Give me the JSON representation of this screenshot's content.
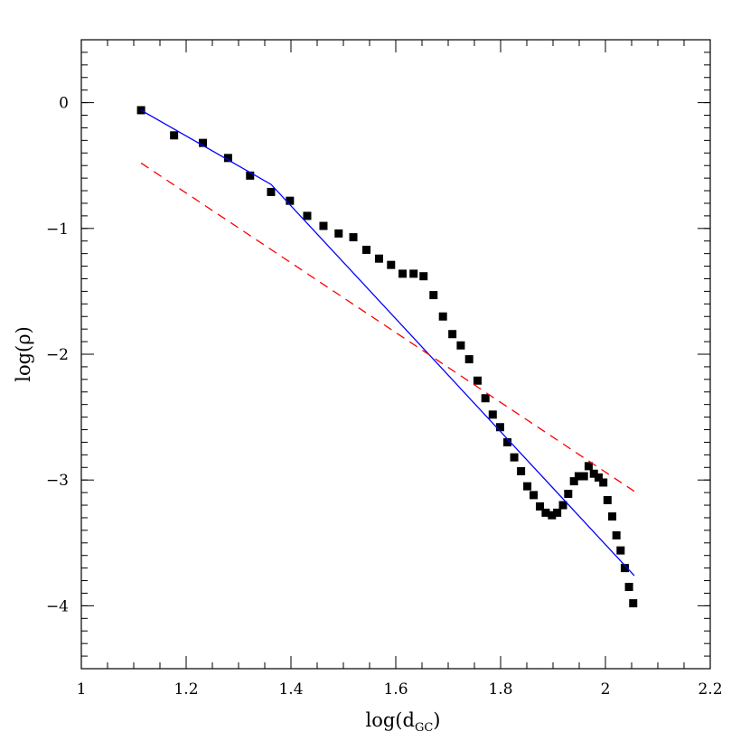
{
  "chart_data": {
    "type": "scatter",
    "xlabel": {
      "base": "log(d",
      "sub": "GC",
      "close": ")"
    },
    "ylabel": "log(ρ)",
    "xlim": [
      1.0,
      2.2
    ],
    "ylim": [
      -4.5,
      0.5
    ],
    "x_ticks": [
      {
        "value": 1.0,
        "label": "1"
      },
      {
        "value": 1.2,
        "label": "1.2"
      },
      {
        "value": 1.4,
        "label": "1.4"
      },
      {
        "value": 1.6,
        "label": "1.6"
      },
      {
        "value": 1.8,
        "label": "1.8"
      },
      {
        "value": 2.0,
        "label": "2"
      },
      {
        "value": 2.2,
        "label": "2.2"
      }
    ],
    "y_ticks": [
      {
        "value": 0,
        "label": "0"
      },
      {
        "value": -1,
        "label": "−1"
      },
      {
        "value": -2,
        "label": "−2"
      },
      {
        "value": -3,
        "label": "−3"
      },
      {
        "value": -4,
        "label": "−4"
      }
    ],
    "x_minor_step": 0.05,
    "y_minor_step": 0.1,
    "series": [
      {
        "kind": "points",
        "color": "#000000",
        "marker": "square",
        "points": [
          [
            1.114,
            -0.06
          ],
          [
            1.177,
            -0.26
          ],
          [
            1.232,
            -0.32
          ],
          [
            1.28,
            -0.44
          ],
          [
            1.322,
            -0.58
          ],
          [
            1.362,
            -0.71
          ],
          [
            1.398,
            -0.78
          ],
          [
            1.431,
            -0.9
          ],
          [
            1.462,
            -0.98
          ],
          [
            1.491,
            -1.04
          ],
          [
            1.519,
            -1.07
          ],
          [
            1.544,
            -1.17
          ],
          [
            1.568,
            -1.24
          ],
          [
            1.591,
            -1.29
          ],
          [
            1.613,
            -1.36
          ],
          [
            1.634,
            -1.36
          ],
          [
            1.653,
            -1.38
          ],
          [
            1.672,
            -1.53
          ],
          [
            1.69,
            -1.7
          ],
          [
            1.708,
            -1.84
          ],
          [
            1.724,
            -1.93
          ],
          [
            1.74,
            -2.04
          ],
          [
            1.756,
            -2.21
          ],
          [
            1.771,
            -2.35
          ],
          [
            1.785,
            -2.48
          ],
          [
            1.799,
            -2.58
          ],
          [
            1.813,
            -2.7
          ],
          [
            1.826,
            -2.82
          ],
          [
            1.839,
            -2.93
          ],
          [
            1.851,
            -3.05
          ],
          [
            1.863,
            -3.12
          ],
          [
            1.875,
            -3.21
          ],
          [
            1.886,
            -3.26
          ],
          [
            1.898,
            -3.28
          ],
          [
            1.908,
            -3.26
          ],
          [
            1.919,
            -3.2
          ],
          [
            1.929,
            -3.11
          ],
          [
            1.94,
            -3.01
          ],
          [
            1.949,
            -2.97
          ],
          [
            1.959,
            -2.97
          ],
          [
            1.968,
            -2.89
          ],
          [
            1.978,
            -2.95
          ],
          [
            1.987,
            -2.98
          ],
          [
            1.996,
            -3.02
          ],
          [
            2.004,
            -3.16
          ],
          [
            2.013,
            -3.29
          ],
          [
            2.021,
            -3.44
          ],
          [
            2.029,
            -3.56
          ],
          [
            2.037,
            -3.7
          ],
          [
            2.045,
            -3.85
          ],
          [
            2.053,
            -3.98
          ]
        ]
      },
      {
        "kind": "line",
        "color": "#0000ff",
        "dash": "solid",
        "points": [
          [
            1.114,
            -0.06
          ],
          [
            1.362,
            -0.65
          ],
          [
            2.055,
            -3.76
          ]
        ]
      },
      {
        "kind": "line",
        "color": "#ff0000",
        "dash": "dashed",
        "points": [
          [
            1.114,
            -0.48
          ],
          [
            2.055,
            -3.09
          ]
        ]
      }
    ]
  }
}
